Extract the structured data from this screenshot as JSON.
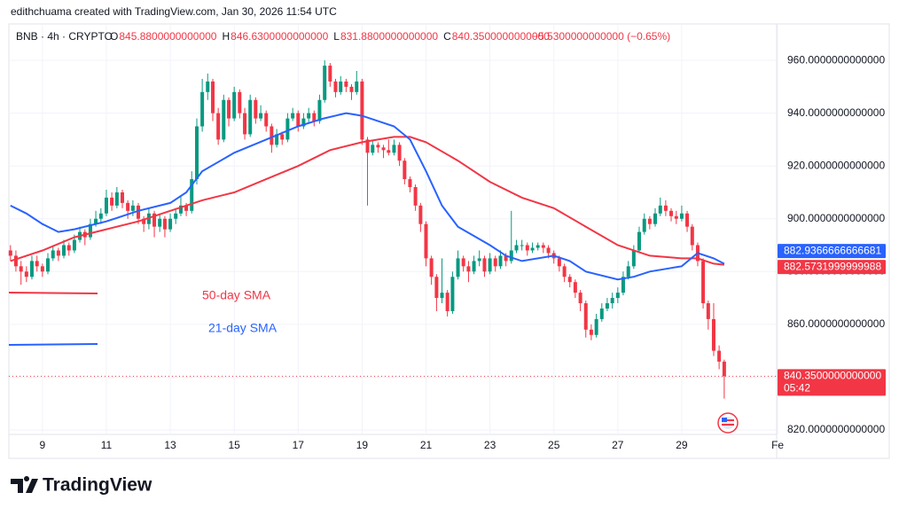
{
  "header": {
    "attribution": "edithchuama created with TradingView.com, Jan 30, 2026 11:54 UTC",
    "symbol": "BNB · 4h · CRYPTO",
    "ohlc": [
      {
        "key": "O",
        "label": "845.8800000000000"
      },
      {
        "key": "H",
        "label": "846.6300000000000"
      },
      {
        "key": "L",
        "label": "831.8800000000000"
      },
      {
        "key": "C",
        "label": "840.3500000000000"
      }
    ],
    "change": "−5.5300000000000 (−0.65%)"
  },
  "footer": {
    "logo": "TradingView"
  },
  "chart_data": {
    "type": "candlestick",
    "up_color": "#089981",
    "down_color": "#f23645",
    "grid": true,
    "xlim": [
      7.95,
      31.97
    ],
    "xticks": [
      9,
      11,
      13,
      15,
      17,
      19,
      21,
      23,
      25,
      27,
      29,
      {
        "value": 32,
        "label": "Fe"
      }
    ],
    "ylim": [
      818.3,
      973.8
    ],
    "yticks": [
      {
        "value": 820,
        "label": "820.0000000000000"
      },
      {
        "value": 840,
        "label": "840.0000000000000"
      },
      {
        "value": 860,
        "label": "860.0000000000000"
      },
      {
        "value": 880,
        "label": "880.0000000000000"
      },
      {
        "value": 900,
        "label": "900.0000000000000"
      },
      {
        "value": 920,
        "label": "920.0000000000000"
      },
      {
        "value": 940,
        "label": "940.0000000000000"
      },
      {
        "value": 960,
        "label": "960.0000000000000"
      }
    ],
    "x": [
      8,
      8.17,
      8.33,
      8.5,
      8.67,
      8.83,
      9,
      9.17,
      9.33,
      9.5,
      9.67,
      9.83,
      10,
      10.17,
      10.33,
      10.5,
      10.67,
      10.83,
      11,
      11.17,
      11.33,
      11.5,
      11.67,
      11.83,
      12,
      12.17,
      12.33,
      12.5,
      12.67,
      12.83,
      13,
      13.17,
      13.33,
      13.5,
      13.67,
      13.83,
      14,
      14.17,
      14.33,
      14.5,
      14.67,
      14.83,
      15,
      15.17,
      15.33,
      15.5,
      15.67,
      15.83,
      16,
      16.17,
      16.33,
      16.5,
      16.67,
      16.83,
      17,
      17.17,
      17.33,
      17.5,
      17.67,
      17.83,
      18,
      18.17,
      18.33,
      18.5,
      18.67,
      18.83,
      19,
      19.17,
      19.33,
      19.5,
      19.67,
      19.83,
      20,
      20.17,
      20.33,
      20.5,
      20.67,
      20.83,
      21,
      21.17,
      21.33,
      21.5,
      21.67,
      21.83,
      22,
      22.17,
      22.33,
      22.5,
      22.67,
      22.83,
      23,
      23.17,
      23.33,
      23.5,
      23.67,
      23.83,
      24,
      24.17,
      24.33,
      24.5,
      24.67,
      24.83,
      25,
      25.17,
      25.33,
      25.5,
      25.67,
      25.83,
      26,
      26.17,
      26.33,
      26.5,
      26.67,
      26.83,
      27,
      27.17,
      27.33,
      27.5,
      27.67,
      27.83,
      28,
      28.17,
      28.33,
      28.5,
      28.67,
      28.83,
      29,
      29.17,
      29.33,
      29.5,
      29.67,
      29.83,
      30,
      30.17,
      30.33
    ],
    "candles": [
      [
        888,
        890,
        884,
        886
      ],
      [
        886,
        888,
        880,
        882
      ],
      [
        882,
        884,
        875,
        880
      ],
      [
        880,
        882,
        876,
        878
      ],
      [
        878,
        886,
        877,
        884
      ],
      [
        884,
        886,
        880,
        882
      ],
      [
        882,
        883,
        878,
        880
      ],
      [
        880,
        887,
        879,
        885
      ],
      [
        885,
        890,
        884,
        888
      ],
      [
        888,
        889,
        884,
        886
      ],
      [
        886,
        892,
        885,
        890
      ],
      [
        890,
        891,
        886,
        888
      ],
      [
        888,
        894,
        887,
        892
      ],
      [
        892,
        897,
        891,
        895
      ],
      [
        895,
        896,
        890,
        893
      ],
      [
        893,
        900,
        892,
        898
      ],
      [
        898,
        903,
        897,
        900
      ],
      [
        900,
        904,
        898,
        902
      ],
      [
        902,
        911,
        901,
        908
      ],
      [
        908,
        910,
        903,
        905
      ],
      [
        905,
        912,
        904,
        910
      ],
      [
        910,
        911,
        904,
        906
      ],
      [
        906,
        907,
        900,
        903
      ],
      [
        903,
        907,
        901,
        905
      ],
      [
        905,
        906,
        898,
        900
      ],
      [
        900,
        901,
        895,
        898
      ],
      [
        898,
        904,
        896,
        902
      ],
      [
        902,
        903,
        893,
        897
      ],
      [
        897,
        902,
        895,
        900
      ],
      [
        900,
        901,
        893,
        896
      ],
      [
        896,
        902,
        895,
        900
      ],
      [
        900,
        904,
        898,
        902
      ],
      [
        902,
        909,
        901,
        905
      ],
      [
        905,
        906,
        901,
        903
      ],
      [
        903,
        918,
        902,
        915
      ],
      [
        915,
        938,
        913,
        935
      ],
      [
        935,
        953,
        933,
        948
      ],
      [
        948,
        955,
        945,
        952
      ],
      [
        952,
        953,
        937,
        940
      ],
      [
        940,
        942,
        928,
        930
      ],
      [
        930,
        947,
        929,
        945
      ],
      [
        945,
        946,
        935,
        938
      ],
      [
        938,
        950,
        937,
        948
      ],
      [
        948,
        949,
        938,
        940
      ],
      [
        940,
        942,
        930,
        932
      ],
      [
        932,
        947,
        931,
        945
      ],
      [
        945,
        946,
        936,
        938
      ],
      [
        938,
        943,
        937,
        940
      ],
      [
        940,
        941,
        933,
        935
      ],
      [
        935,
        936,
        925,
        928
      ],
      [
        928,
        934,
        927,
        932
      ],
      [
        932,
        933,
        928,
        930
      ],
      [
        930,
        940,
        929,
        938
      ],
      [
        938,
        942,
        937,
        940
      ],
      [
        940,
        941,
        933,
        935
      ],
      [
        935,
        940,
        934,
        938
      ],
      [
        938,
        942,
        936,
        940
      ],
      [
        940,
        941,
        935,
        937
      ],
      [
        937,
        947,
        936,
        945
      ],
      [
        945,
        960,
        944,
        958
      ],
      [
        958,
        959,
        950,
        952
      ],
      [
        952,
        953,
        946,
        948
      ],
      [
        948,
        954,
        947,
        952
      ],
      [
        952,
        953,
        948,
        950
      ],
      [
        950,
        951,
        945,
        948
      ],
      [
        948,
        956,
        947,
        952
      ],
      [
        952,
        953,
        928,
        930
      ],
      [
        930,
        931,
        905,
        925
      ],
      [
        925,
        930,
        924,
        928
      ],
      [
        928,
        929,
        925,
        927
      ],
      [
        927,
        928,
        923,
        926
      ],
      [
        926,
        930,
        924,
        925
      ],
      [
        925,
        930,
        924,
        928
      ],
      [
        928,
        929,
        920,
        922
      ],
      [
        922,
        923,
        913,
        915
      ],
      [
        915,
        916,
        910,
        912
      ],
      [
        912,
        913,
        903,
        905
      ],
      [
        905,
        906,
        895,
        898
      ],
      [
        898,
        899,
        882,
        885
      ],
      [
        885,
        886,
        875,
        878
      ],
      [
        878,
        879,
        865,
        870
      ],
      [
        870,
        885,
        868,
        872
      ],
      [
        872,
        873,
        863,
        865
      ],
      [
        865,
        880,
        864,
        878
      ],
      [
        878,
        888,
        877,
        885
      ],
      [
        885,
        886,
        880,
        882
      ],
      [
        882,
        884,
        876,
        880
      ],
      [
        880,
        886,
        879,
        884
      ],
      [
        884,
        888,
        882,
        885
      ],
      [
        885,
        886,
        878,
        880
      ],
      [
        880,
        887,
        879,
        885
      ],
      [
        885,
        886,
        880,
        882
      ],
      [
        882,
        888,
        881,
        886
      ],
      [
        886,
        887,
        882,
        884
      ],
      [
        884,
        903,
        883,
        888
      ],
      [
        888,
        892,
        887,
        890
      ],
      [
        890,
        892,
        888,
        890
      ],
      [
        890,
        891,
        886,
        888
      ],
      [
        888,
        891,
        887,
        889
      ],
      [
        889,
        891,
        888,
        890
      ],
      [
        890,
        891,
        887,
        889
      ],
      [
        889,
        890,
        885,
        887
      ],
      [
        887,
        888,
        883,
        885
      ],
      [
        885,
        886,
        880,
        882
      ],
      [
        882,
        883,
        876,
        878
      ],
      [
        878,
        879,
        874,
        876
      ],
      [
        876,
        877,
        870,
        872
      ],
      [
        872,
        873,
        865,
        868
      ],
      [
        868,
        869,
        855,
        858
      ],
      [
        858,
        860,
        854,
        856
      ],
      [
        856,
        864,
        855,
        862
      ],
      [
        862,
        868,
        861,
        866
      ],
      [
        866,
        870,
        865,
        868
      ],
      [
        868,
        872,
        866,
        870
      ],
      [
        870,
        874,
        868,
        872
      ],
      [
        872,
        880,
        871,
        878
      ],
      [
        878,
        884,
        877,
        882
      ],
      [
        882,
        890,
        881,
        888
      ],
      [
        888,
        897,
        887,
        895
      ],
      [
        895,
        902,
        894,
        900
      ],
      [
        900,
        901,
        896,
        898
      ],
      [
        898,
        904,
        897,
        902
      ],
      [
        902,
        908,
        901,
        905
      ],
      [
        905,
        907,
        901,
        903
      ],
      [
        903,
        904,
        899,
        901
      ],
      [
        901,
        903,
        898,
        900
      ],
      [
        900,
        905,
        899,
        902
      ],
      [
        902,
        903,
        895,
        897
      ],
      [
        897,
        898,
        888,
        890
      ],
      [
        890,
        891,
        882,
        884
      ],
      [
        884,
        885,
        866,
        868
      ],
      [
        868,
        869,
        858,
        862
      ],
      [
        862,
        868,
        848,
        850
      ],
      [
        850,
        852,
        843,
        845.88
      ],
      [
        845.88,
        846.63,
        831.88,
        840.35
      ]
    ],
    "series": [
      {
        "name": "50-day SMA",
        "color": "#f23645",
        "x": [
          8,
          9,
          10,
          11,
          12,
          13,
          14,
          15,
          16,
          17,
          18,
          19,
          20,
          20.5,
          21,
          22,
          23,
          24,
          25,
          26,
          27,
          28,
          29,
          29.5,
          30,
          30.33
        ],
        "values": [
          884,
          888,
          893,
          896,
          899,
          903,
          907,
          910,
          915,
          920,
          926,
          929,
          931,
          931,
          929,
          922,
          914,
          908,
          904,
          897,
          890,
          886,
          885,
          885,
          883,
          882.57
        ]
      },
      {
        "name": "21-day SMA",
        "color": "#2962ff",
        "x": [
          8,
          8.5,
          9,
          9.5,
          10,
          11,
          12,
          13,
          13.5,
          14,
          15,
          16,
          17,
          17.8,
          18.5,
          19,
          20,
          20.5,
          21,
          21.5,
          22,
          23,
          23.5,
          24,
          25,
          25.5,
          26,
          27,
          27.5,
          28,
          28.5,
          29,
          29.5,
          30,
          30.33
        ],
        "values": [
          905,
          902,
          898,
          895,
          896,
          899,
          903,
          906,
          910,
          918,
          925,
          930,
          935,
          938,
          940,
          939,
          935,
          930,
          918,
          905,
          897,
          890,
          886,
          884,
          886,
          884,
          880,
          877,
          878,
          880,
          881,
          882,
          887,
          885,
          882.94
        ]
      }
    ],
    "price_tags": [
      {
        "value": 882.9366666666681,
        "label": "882.9366666666681",
        "color": "#2962ff"
      },
      {
        "value": 882.5731999999988,
        "label": "882.5731999999988",
        "color": "#f23645"
      },
      {
        "value": 840.35,
        "label": "840.3500000000000",
        "color": "#f23645"
      }
    ],
    "countdown": "05:42"
  }
}
